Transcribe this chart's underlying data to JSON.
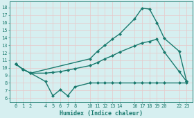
{
  "xlabel": "Humidex (Indice chaleur)",
  "bg_color": "#d6eff0",
  "grid_color": "#b8dfe0",
  "line_color": "#1a7a6e",
  "x_ticks": [
    0,
    1,
    2,
    4,
    5,
    6,
    7,
    8,
    10,
    11,
    12,
    13,
    14,
    16,
    17,
    18,
    19,
    20,
    22,
    23
  ],
  "x_tick_labels": [
    "0",
    "1",
    "2",
    "4",
    "5",
    "6",
    "7",
    "8",
    "10",
    "11",
    "12",
    "13",
    "14",
    "16",
    "17",
    "18",
    "19",
    "20",
    "22",
    "23"
  ],
  "ylim": [
    5.5,
    18.8
  ],
  "xlim": [
    -0.8,
    23.8
  ],
  "yticks": [
    6,
    7,
    8,
    9,
    10,
    11,
    12,
    13,
    14,
    15,
    16,
    17,
    18
  ],
  "line1_x": [
    0,
    1,
    2,
    4,
    5,
    6,
    7,
    8,
    10,
    11,
    12,
    13,
    14,
    16,
    17,
    18,
    19,
    20,
    22,
    23
  ],
  "line1_y": [
    10.5,
    9.8,
    9.3,
    8.2,
    6.3,
    7.1,
    6.3,
    7.5,
    8.0,
    8.0,
    8.0,
    8.0,
    8.0,
    8.0,
    8.0,
    8.0,
    8.0,
    8.0,
    8.0,
    8.0
  ],
  "line2_x": [
    0,
    1,
    2,
    4,
    5,
    6,
    7,
    8,
    10,
    11,
    12,
    13,
    14,
    16,
    17,
    18,
    19,
    20,
    22,
    23
  ],
  "line2_y": [
    10.5,
    9.8,
    9.3,
    9.3,
    9.4,
    9.5,
    9.7,
    9.9,
    10.3,
    10.7,
    11.2,
    11.6,
    12.1,
    12.9,
    13.3,
    13.5,
    13.8,
    12.1,
    9.5,
    8.2
  ],
  "line3_x": [
    0,
    1,
    2,
    10,
    11,
    12,
    13,
    14,
    16,
    17,
    18,
    19,
    20,
    22,
    23
  ],
  "line3_y": [
    10.5,
    9.8,
    9.3,
    11.2,
    12.2,
    13.0,
    13.8,
    14.5,
    16.5,
    17.9,
    17.8,
    16.0,
    13.9,
    12.2,
    8.2
  ],
  "markersize": 2.5,
  "linewidth": 1.0
}
